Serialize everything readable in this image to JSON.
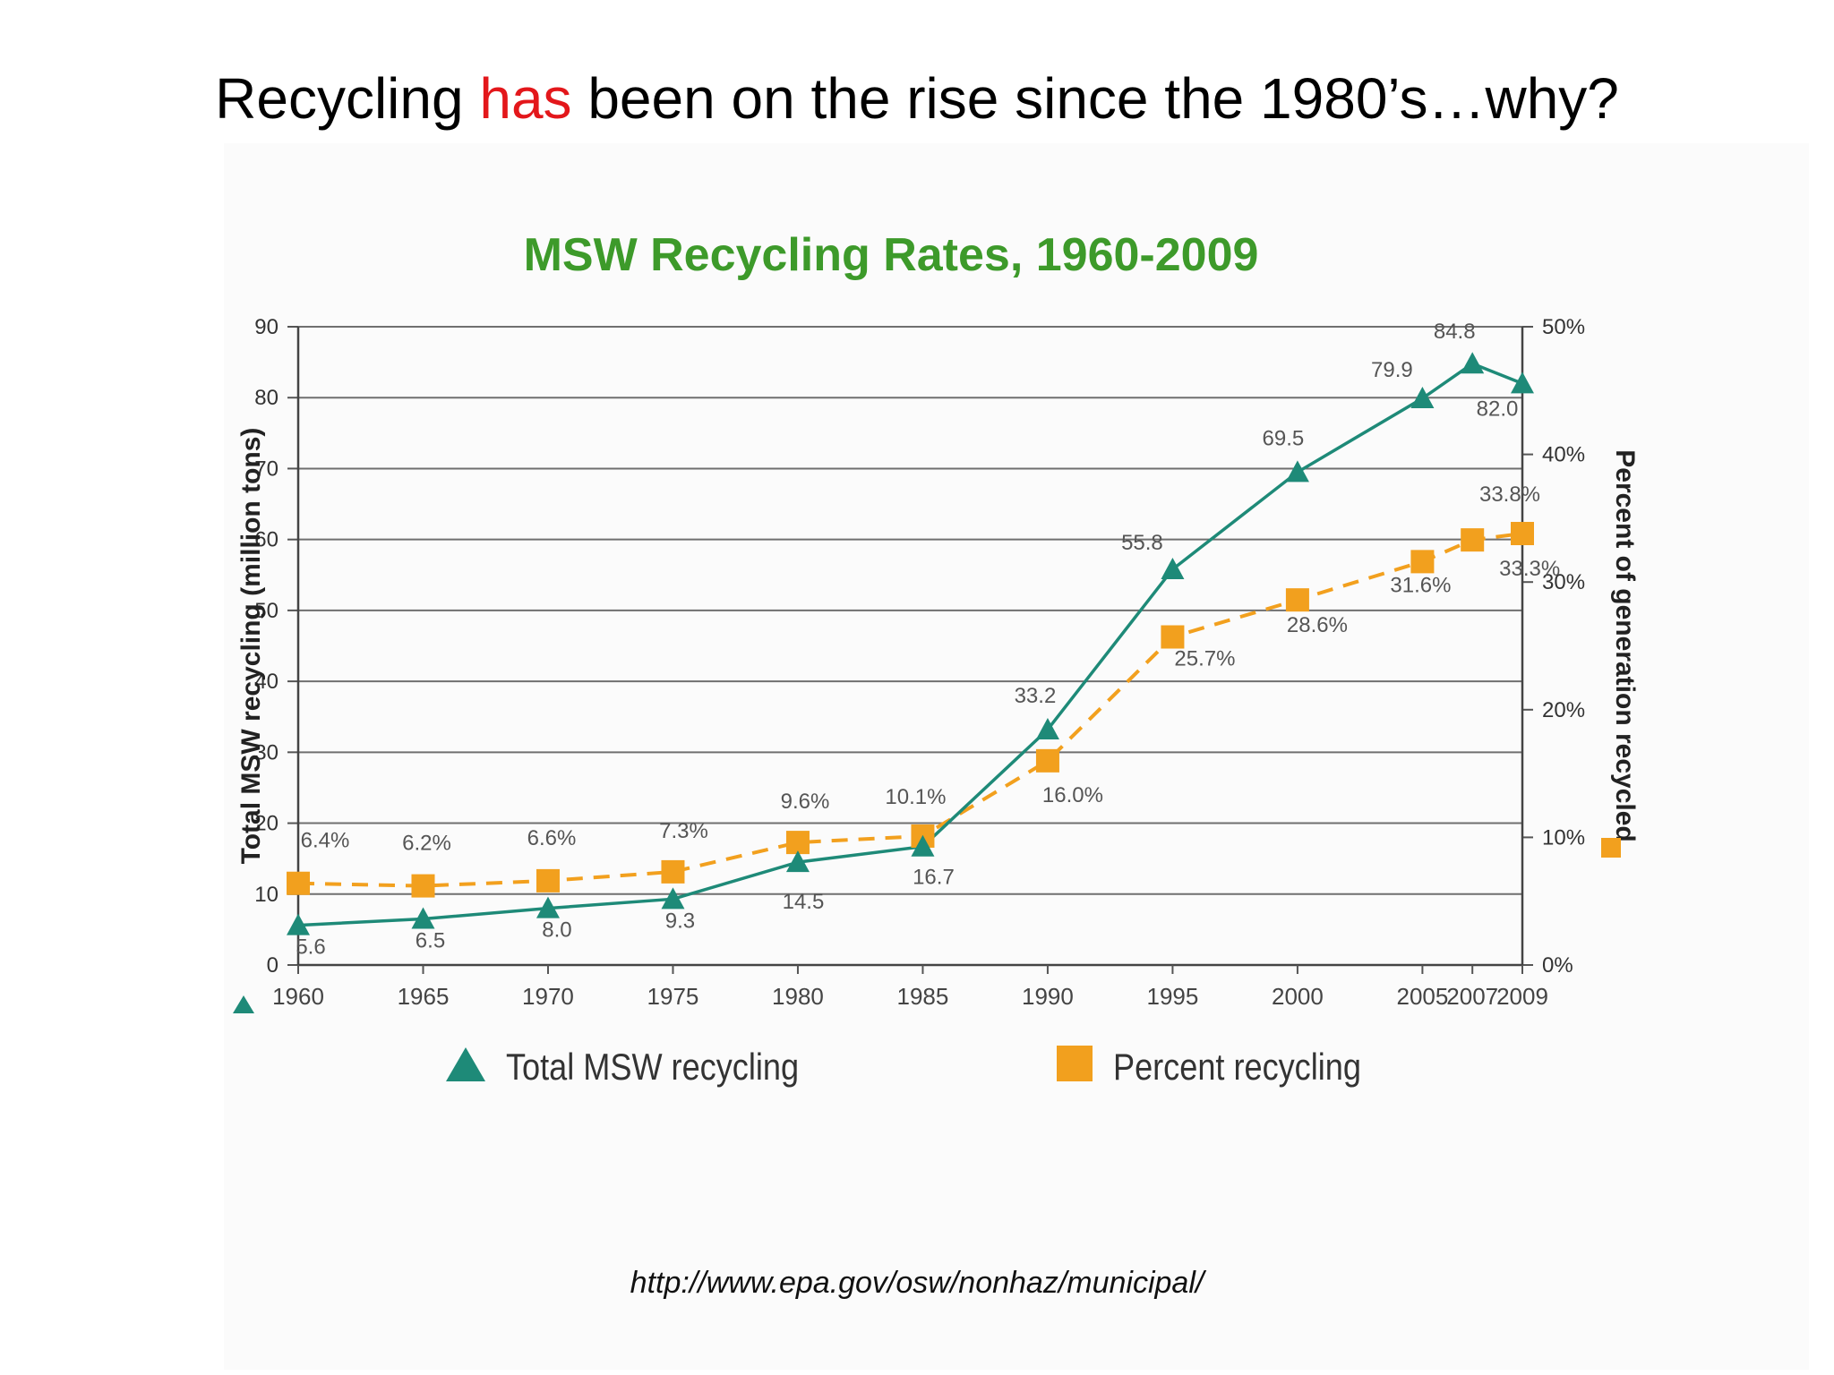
{
  "slide": {
    "title_before": "Recycling ",
    "title_highlight": "has",
    "title_after": " been on the rise since the 1980’s…why?",
    "highlight_color": "#e3171b",
    "source": "http://www.epa.gov/osw/nonhaz/municipal/"
  },
  "chart_data": {
    "type": "line",
    "title": "MSW Recycling Rates, 1960-2009",
    "title_color": "#3d9a2a",
    "xlabel": "",
    "ylabel_left": "Total MSW recycling (million tons)",
    "ylabel_right": "Percent of generation recycled",
    "x": [
      1960,
      1965,
      1970,
      1975,
      1980,
      1985,
      1990,
      1995,
      2000,
      2005,
      2007,
      2009
    ],
    "x_tick_labels": [
      "1960",
      "1965",
      "1970",
      "1975",
      "1980",
      "1985",
      "1990",
      "1995",
      "2000",
      "2005",
      "2007",
      "2009"
    ],
    "ylim_left": [
      0,
      90
    ],
    "y_ticks_left": [
      "0",
      "10",
      "20",
      "30",
      "40",
      "50",
      "60",
      "70",
      "80",
      "90"
    ],
    "ylim_right": [
      0,
      50
    ],
    "y_ticks_right": [
      "0%",
      "10%",
      "20%",
      "30%",
      "40%",
      "50%"
    ],
    "grid": true,
    "legend_position": "bottom",
    "series": [
      {
        "name": "Total MSW recycling",
        "axis": "left",
        "marker": "triangle",
        "line_style": "solid",
        "color": "#1e8a78",
        "values": [
          5.6,
          6.5,
          8.0,
          9.3,
          14.5,
          16.7,
          33.2,
          55.8,
          69.5,
          79.9,
          84.8,
          82.0
        ],
        "labels": [
          "5.6",
          "6.5",
          "8.0",
          "9.3",
          "14.5",
          "16.7",
          "33.2",
          "55.8",
          "69.5",
          "79.9",
          "84.8",
          "82.0"
        ]
      },
      {
        "name": "Percent recycling",
        "axis": "right",
        "marker": "square",
        "line_style": "dashed",
        "color": "#f2a01e",
        "values": [
          6.4,
          6.2,
          6.6,
          7.3,
          9.6,
          10.1,
          16.0,
          25.7,
          28.6,
          31.6,
          33.3,
          33.8
        ],
        "labels": [
          "6.4%",
          "6.2%",
          "6.6%",
          "7.3%",
          "9.6%",
          "10.1%",
          "16.0%",
          "25.7%",
          "28.6%",
          "31.6%",
          "33.3%",
          "33.8%"
        ]
      }
    ]
  }
}
